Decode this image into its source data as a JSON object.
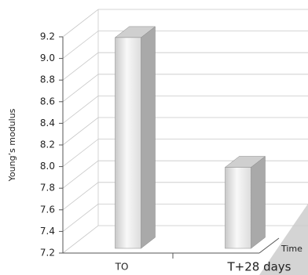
{
  "chart_data": {
    "type": "bar3d",
    "y_label": "Young’s modulus",
    "x_label": "Time",
    "categories": [
      "TO",
      "T+28 days"
    ],
    "values": [
      9.15,
      7.95
    ],
    "color": "#d9d9d9",
    "ylim": [
      7.2,
      9.2
    ],
    "yticks": [
      7.2,
      7.4,
      7.6,
      7.8,
      {
        "value": 8,
        "label": "8.0"
      },
      8.2,
      8.4,
      8.6,
      8.8,
      {
        "value": 9,
        "label": "9.0"
      },
      9.2
    ],
    "grid": true
  }
}
